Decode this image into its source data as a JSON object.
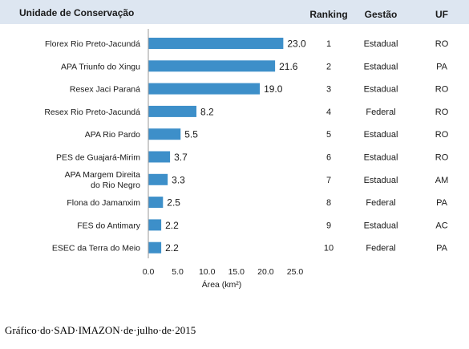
{
  "chart_data": {
    "type": "bar",
    "orientation": "horizontal",
    "header": {
      "unit_label": "Unidade de Conservação",
      "ranking": "Ranking",
      "gestao": "Gestão",
      "uf": "UF"
    },
    "categories": [
      [
        "Florex Rio Preto-Jacundá"
      ],
      [
        "APA  Triunfo do Xingu"
      ],
      [
        "Resex  Jaci Paraná"
      ],
      [
        "Resex  Rio Preto-Jacundá"
      ],
      [
        "APA  Rio Pardo"
      ],
      [
        "PES de Guajará-Mirim"
      ],
      [
        "APA  Margem Direita",
        "do Rio Negro"
      ],
      [
        "Flona do Jamanxim"
      ],
      [
        "FES do Antimary"
      ],
      [
        "ESEC da Terra do Meio"
      ]
    ],
    "values": [
      23.0,
      21.6,
      19.0,
      8.2,
      5.5,
      3.7,
      3.3,
      2.5,
      2.2,
      2.2
    ],
    "value_labels": [
      "23.0",
      "21.6",
      "19.0",
      "8.2",
      "5.5",
      "3.7",
      "3.3",
      "2.5",
      "2.2",
      "2.2"
    ],
    "ranking": [
      "1",
      "2",
      "3",
      "4",
      "5",
      "6",
      "7",
      "8",
      "9",
      "10"
    ],
    "gestao": [
      "Estadual",
      "Estadual",
      "Estadual",
      "Federal",
      "Estadual",
      "Estadual",
      "Estadual",
      "Federal",
      "Estadual",
      "Federal"
    ],
    "uf": [
      "RO",
      "PA",
      "RO",
      "RO",
      "RO",
      "RO",
      "AM",
      "PA",
      "AC",
      "PA"
    ],
    "xlabel": "Área (km²)",
    "xlim": [
      0,
      25
    ],
    "xticks": [
      "0.0",
      "5.0",
      "10.0",
      "15.0",
      "20.0",
      "25.0"
    ],
    "grid": false,
    "colors": {
      "bar": "#3d8fc9",
      "header_band": "#dde6f1",
      "text": "#1a1a1a"
    }
  },
  "caption": "Gráfico·do·SAD·IMAZON·de·julho·de·2015"
}
